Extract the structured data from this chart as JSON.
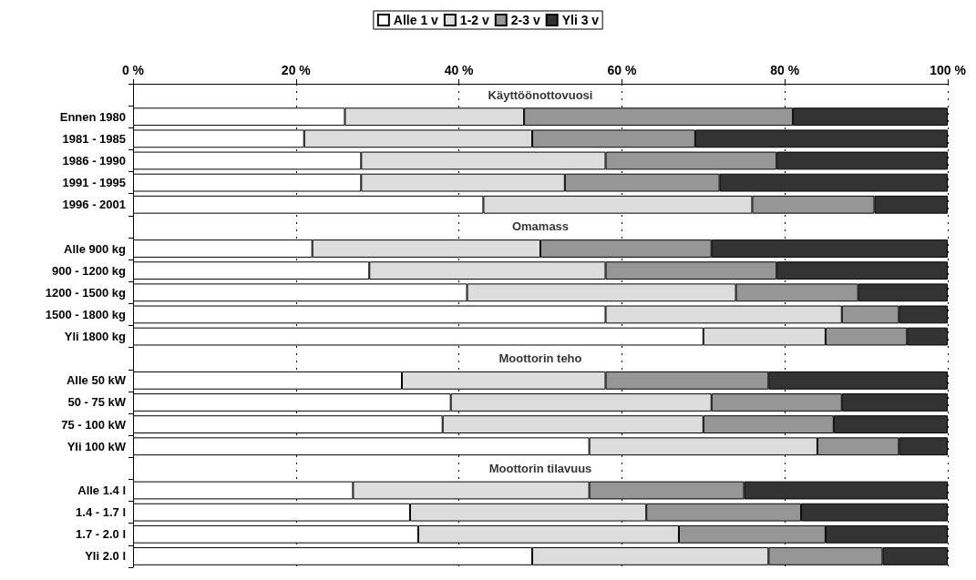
{
  "chart_data": {
    "type": "bar",
    "orientation": "horizontal",
    "stacked": true,
    "categories": [
      null,
      "Ennen 1980",
      "1981 - 1985",
      "1986 - 1990",
      "1991 - 1995",
      "1996 - 2001",
      null,
      "Alle 900 kg",
      "900 - 1200 kg",
      "1200 - 1500 kg",
      "1500 - 1800 kg",
      "Yli 1800 kg",
      null,
      "Alle 50 kW",
      "50 - 75 kW",
      "75 - 100 kW",
      "Yli 100 kW",
      null,
      "Alle 1.4 l",
      "1.4 - 1.7 l",
      "1.7 - 2.0 l",
      "Yli 2.0 l"
    ],
    "annotations": [
      "Käyttöönottovuosi",
      "Omamass",
      "Moottorin teho",
      "Moottorin tilavuus"
    ],
    "series": [
      {
        "name": "Alle 1 v",
        "color": "#ffffff",
        "values": [
          null,
          26,
          21,
          28,
          28,
          43,
          null,
          22,
          29,
          41,
          58,
          70,
          null,
          33,
          39,
          38,
          56,
          null,
          27,
          34,
          35,
          49
        ]
      },
      {
        "name": "1-2 v",
        "color": "#dddddd",
        "values": [
          null,
          22,
          28,
          30,
          25,
          33,
          null,
          28,
          29,
          33,
          29,
          15,
          null,
          25,
          32,
          32,
          28,
          null,
          29,
          29,
          32,
          29
        ]
      },
      {
        "name": "2-3 v",
        "color": "#969696",
        "values": [
          null,
          33,
          20,
          21,
          19,
          15,
          null,
          21,
          21,
          15,
          7,
          10,
          null,
          20,
          16,
          16,
          10,
          null,
          19,
          19,
          18,
          14
        ]
      },
      {
        "name": "Yli 3 v",
        "color": "#333333",
        "values": [
          null,
          19,
          31,
          21,
          28,
          9,
          null,
          29,
          21,
          11,
          6,
          5,
          null,
          22,
          13,
          14,
          6,
          null,
          25,
          18,
          15,
          8
        ]
      }
    ],
    "xlim": [
      0,
      100
    ],
    "xticks": [
      {
        "value": 0,
        "label": "0 %"
      },
      {
        "value": 20,
        "label": "20 %"
      },
      {
        "value": 40,
        "label": "40 %"
      },
      {
        "value": 60,
        "label": "60 %"
      },
      {
        "value": 80,
        "label": "80 %"
      },
      {
        "value": 100,
        "label": "100 %"
      }
    ],
    "grid": "x",
    "legend": "top"
  }
}
